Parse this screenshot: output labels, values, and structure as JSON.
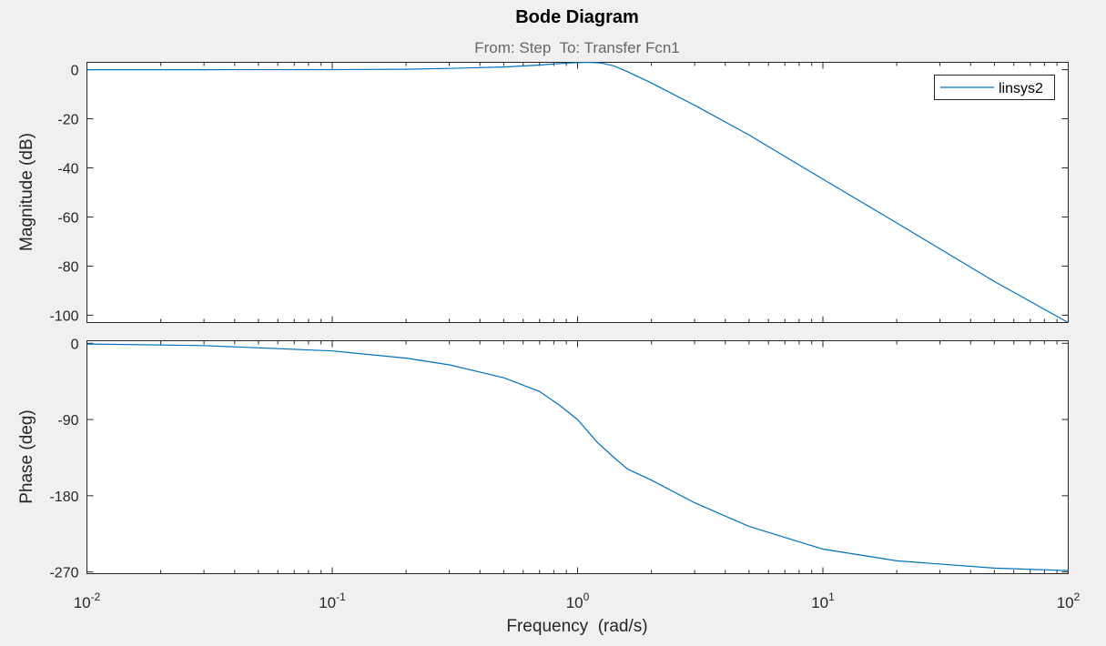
{
  "chart_data": {
    "type": "line",
    "title": "Bode Diagram",
    "subtitle": "From: Step  To: Transfer Fcn1",
    "xlabel": "Frequency  (rad/s)",
    "xscale": "log",
    "xlim": [
      0.01,
      100
    ],
    "x_ticks": [
      {
        "value": 0.01,
        "base": "10",
        "exp": "-2"
      },
      {
        "value": 0.1,
        "base": "10",
        "exp": "-1"
      },
      {
        "value": 1,
        "base": "10",
        "exp": "0"
      },
      {
        "value": 10,
        "base": "10",
        "exp": "1"
      },
      {
        "value": 100,
        "base": "10",
        "exp": "2"
      }
    ],
    "legend": {
      "entries": [
        "linsys2"
      ],
      "location": "top-right"
    },
    "line_color": "#0072bd",
    "panels": [
      {
        "name": "magnitude",
        "ylabel": "Magnitude (dB)",
        "ylim": [
          -103,
          3
        ],
        "y_ticks": [
          0,
          -20,
          -40,
          -60,
          -80,
          -100
        ],
        "series": [
          {
            "name": "linsys2",
            "x": [
              0.01,
              0.03,
              0.1,
              0.2,
              0.3,
              0.5,
              0.7,
              0.85,
              1.0,
              1.12,
              1.25,
              1.4,
              1.6,
              2.0,
              3.0,
              5.0,
              10.0,
              20.0,
              50.0,
              100.0
            ],
            "y": [
              0.0,
              0.0,
              0.05,
              0.2,
              0.5,
              1.1,
              1.9,
              2.5,
              2.9,
              3.0,
              2.7,
              1.6,
              -0.8,
              -5.4,
              -14.5,
              -26.6,
              -44.6,
              -62.4,
              -86.3,
              -104.3
            ]
          }
        ]
      },
      {
        "name": "phase",
        "ylabel": "Phase (deg)",
        "ylim": [
          -272,
          3
        ],
        "y_ticks": [
          0,
          -90,
          -180,
          -270
        ],
        "series": [
          {
            "name": "linsys2",
            "x": [
              0.01,
              0.03,
              0.1,
              0.2,
              0.3,
              0.5,
              0.7,
              0.85,
              1.0,
              1.2,
              1.41,
              1.6,
              2.0,
              3.0,
              5.0,
              10.0,
              20.0,
              50.0,
              100.0
            ],
            "y": [
              -0.9,
              -2.7,
              -9,
              -17.5,
              -25.5,
              -40.7,
              -56.9,
              -73.8,
              -90,
              -116.6,
              -135,
              -148.6,
              -161.6,
              -188.3,
              -216.2,
              -243,
              -256.9,
              -265.4,
              -268.3
            ]
          }
        ]
      }
    ]
  }
}
